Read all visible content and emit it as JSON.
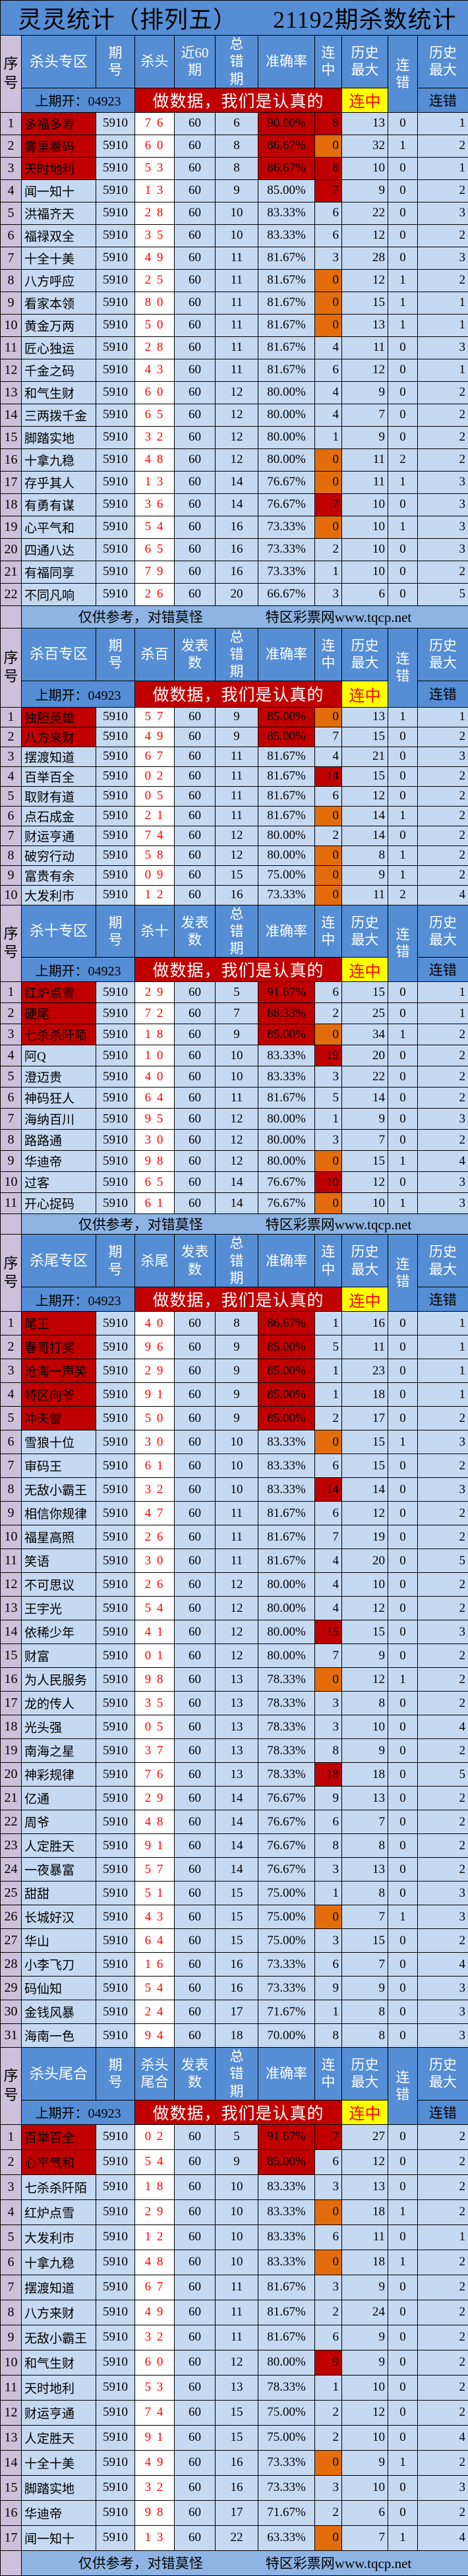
{
  "title": {
    "left": "灵灵统计（排列五）",
    "right": "21192期杀数统计"
  },
  "header_common": {
    "seq": "序号",
    "period": "期号",
    "total_errors": "总错期",
    "accuracy": "准确率",
    "streak_hit": "连中",
    "hist_max": "历史最大",
    "streak_miss": "连错",
    "hist_max2": "历史最大",
    "last_open": "上期开：04923",
    "banner": "做数据，我们是认真的",
    "yellow_label": "连中",
    "max_miss_label": "连错"
  },
  "footer": {
    "left": "仅供参考，对错莫怪",
    "right": "特区彩票网www.tqcp.net"
  },
  "colors": {
    "header": "#558ED5",
    "cell": "#C5D9F1",
    "seq": "#CCC0DA",
    "top_red": "#C00000",
    "hot_red": "#C00000",
    "zero_orange": "#E46C0A",
    "yellow": "#FFFF00",
    "kill_text": "#FF0000",
    "footer": "#8DB4E2"
  },
  "sections": [
    {
      "zone": "杀头专区",
      "kill_label": "杀头",
      "count_label": "近60期",
      "period": "5910",
      "count": "60",
      "rows": [
        [
          "多福多寿",
          "7 6",
          "6",
          "90.00%",
          "8",
          "13",
          "0",
          "1",
          true,
          true
        ],
        [
          "雾里看码",
          "6 0",
          "8",
          "86.67%",
          "0",
          "32",
          "1",
          "2",
          true,
          false
        ],
        [
          "天时地利",
          "5 3",
          "8",
          "86.67%",
          "8",
          "10",
          "0",
          "1",
          true,
          true
        ],
        [
          "闻一知十",
          "1 3",
          "9",
          "85.00%",
          "7",
          "9",
          "0",
          "2",
          false,
          true
        ],
        [
          "洪福齐天",
          "2 8",
          "10",
          "83.33%",
          "6",
          "22",
          "0",
          "3",
          false,
          false
        ],
        [
          "福禄双全",
          "3 5",
          "10",
          "83.33%",
          "6",
          "12",
          "0",
          "2",
          false,
          false
        ],
        [
          "十全十美",
          "4 9",
          "11",
          "81.67%",
          "3",
          "28",
          "0",
          "3",
          false,
          false
        ],
        [
          "八方呼应",
          "2 5",
          "11",
          "81.67%",
          "0",
          "12",
          "1",
          "2",
          false,
          false
        ],
        [
          "看家本领",
          "8 0",
          "11",
          "81.67%",
          "0",
          "15",
          "1",
          "1",
          false,
          false
        ],
        [
          "黄金万两",
          "5 0",
          "11",
          "81.67%",
          "0",
          "13",
          "1",
          "1",
          false,
          false
        ],
        [
          "匠心独运",
          "2 8",
          "11",
          "81.67%",
          "4",
          "11",
          "0",
          "3",
          false,
          false
        ],
        [
          "千金之码",
          "4 3",
          "11",
          "81.67%",
          "6",
          "12",
          "0",
          "1",
          false,
          false
        ],
        [
          "和气生财",
          "6 0",
          "12",
          "80.00%",
          "4",
          "9",
          "0",
          "2",
          false,
          false
        ],
        [
          "三两拨千金",
          "6 5",
          "12",
          "80.00%",
          "4",
          "7",
          "0",
          "2",
          false,
          false
        ],
        [
          "脚踏实地",
          "3 2",
          "12",
          "80.00%",
          "1",
          "9",
          "0",
          "2",
          false,
          false
        ],
        [
          "十拿九稳",
          "4 8",
          "12",
          "80.00%",
          "0",
          "11",
          "2",
          "2",
          false,
          false
        ],
        [
          "存乎其人",
          "1 3",
          "14",
          "76.67%",
          "0",
          "11",
          "1",
          "3",
          false,
          false
        ],
        [
          "有勇有谋",
          "3 6",
          "14",
          "76.67%",
          "7",
          "10",
          "0",
          "3",
          false,
          true
        ],
        [
          "心平气和",
          "5 4",
          "16",
          "73.33%",
          "0",
          "10",
          "1",
          "3",
          false,
          false
        ],
        [
          "四通八达",
          "6 5",
          "16",
          "73.33%",
          "2",
          "10",
          "0",
          "3",
          false,
          false
        ],
        [
          "有福同享",
          "7 9",
          "16",
          "73.33%",
          "1",
          "10",
          "0",
          "2",
          false,
          false
        ],
        [
          "不同凡响",
          "2 6",
          "20",
          "66.67%",
          "3",
          "6",
          "0",
          "5",
          false,
          false
        ]
      ],
      "footer": true
    },
    {
      "zone": "杀百专区",
      "kill_label": "杀百",
      "count_label": "发表数",
      "period": "5910",
      "count": "60",
      "rows": [
        [
          "独胆英雄",
          "5 7",
          "9",
          "85.00%",
          "0",
          "13",
          "1",
          "1",
          true,
          false
        ],
        [
          "八方来财",
          "4 9",
          "9",
          "85.00%",
          "7",
          "15",
          "0",
          "2",
          true,
          false
        ],
        [
          "摆渡知道",
          "6 7",
          "11",
          "81.67%",
          "4",
          "21",
          "0",
          "3",
          false,
          false
        ],
        [
          "百举百全",
          "0 2",
          "11",
          "81.67%",
          "14",
          "15",
          "0",
          "2",
          false,
          true
        ],
        [
          "取财有道",
          "0 5",
          "11",
          "81.67%",
          "6",
          "12",
          "0",
          "2",
          false,
          false
        ],
        [
          "点石成金",
          "2 1",
          "11",
          "81.67%",
          "0",
          "14",
          "1",
          "2",
          false,
          false
        ],
        [
          "财运亨通",
          "7 4",
          "12",
          "80.00%",
          "2",
          "14",
          "0",
          "2",
          false,
          false
        ],
        [
          "破穷行动",
          "5 8",
          "12",
          "80.00%",
          "0",
          "8",
          "1",
          "2",
          false,
          false
        ],
        [
          "富贵有余",
          "0 9",
          "15",
          "75.00%",
          "0",
          "9",
          "1",
          "2",
          false,
          false
        ],
        [
          "大发利市",
          "1 2",
          "16",
          "73.33%",
          "0",
          "11",
          "2",
          "4",
          false,
          false
        ]
      ],
      "footer": false
    },
    {
      "zone": "杀十专区",
      "kill_label": "杀十",
      "count_label": "发表数",
      "period": "5910",
      "count": "60",
      "rows": [
        [
          "红炉点雪",
          "2 9",
          "5",
          "91.67%",
          "6",
          "15",
          "0",
          "1",
          true,
          false
        ],
        [
          "硬尾",
          "7 2",
          "7",
          "88.33%",
          "2",
          "25",
          "0",
          "1",
          true,
          false
        ],
        [
          "七杀杀阡陌",
          "1 8",
          "9",
          "85.00%",
          "0",
          "34",
          "1",
          "2",
          true,
          false
        ],
        [
          "阿Q",
          "1 0",
          "10",
          "83.33%",
          "19",
          "20",
          "0",
          "2",
          false,
          true
        ],
        [
          "澄迈贵",
          "4 0",
          "10",
          "83.33%",
          "3",
          "22",
          "0",
          "2",
          false,
          false
        ],
        [
          "神码狂人",
          "6 4",
          "11",
          "81.67%",
          "5",
          "14",
          "0",
          "2",
          false,
          false
        ],
        [
          "海纳百川",
          "9 5",
          "12",
          "80.00%",
          "1",
          "9",
          "0",
          "3",
          false,
          false
        ],
        [
          "路路通",
          "3 0",
          "12",
          "80.00%",
          "3",
          "7",
          "0",
          "2",
          false,
          false
        ],
        [
          "华迪帝",
          "9 8",
          "12",
          "80.00%",
          "0",
          "15",
          "1",
          "4",
          false,
          false
        ],
        [
          "过客",
          "6 5",
          "14",
          "76.67%",
          "10",
          "12",
          "0",
          "3",
          false,
          true
        ],
        [
          "开心捉码",
          "6 1",
          "14",
          "76.67%",
          "0",
          "10",
          "1",
          "3",
          false,
          false
        ]
      ],
      "footer": true
    },
    {
      "zone": "杀尾专区",
      "kill_label": "杀尾",
      "count_label": "发表数",
      "period": "5910",
      "count": "60",
      "rows": [
        [
          "尾王",
          "4 0",
          "8",
          "86.67%",
          "1",
          "16",
          "0",
          "1",
          true,
          false
        ],
        [
          "春哥打奖",
          "9 6",
          "9",
          "85.00%",
          "5",
          "11",
          "0",
          "1",
          true,
          false
        ],
        [
          "沧海一声笑",
          "2 9",
          "9",
          "85.00%",
          "1",
          "23",
          "0",
          "1",
          true,
          false
        ],
        [
          "特区向爷",
          "9 1",
          "9",
          "85.00%",
          "1",
          "18",
          "0",
          "1",
          true,
          false
        ],
        [
          "冲天雷",
          "5 0",
          "9",
          "85.00%",
          "2",
          "17",
          "0",
          "2",
          true,
          false
        ],
        [
          "雪狼十位",
          "3 0",
          "10",
          "83.33%",
          "0",
          "15",
          "1",
          "3",
          false,
          false
        ],
        [
          "审码王",
          "6 1",
          "10",
          "83.33%",
          "6",
          "15",
          "0",
          "2",
          false,
          false
        ],
        [
          "无敌小霸王",
          "3 2",
          "10",
          "83.33%",
          "14",
          "14",
          "0",
          "3",
          false,
          true
        ],
        [
          "相信你规律",
          "4 7",
          "11",
          "81.67%",
          "6",
          "12",
          "0",
          "2",
          false,
          false
        ],
        [
          "福星高照",
          "2 6",
          "11",
          "81.67%",
          "7",
          "19",
          "0",
          "2",
          false,
          false
        ],
        [
          "笑语",
          "3 0",
          "11",
          "81.67%",
          "4",
          "20",
          "0",
          "5",
          false,
          false
        ],
        [
          "不可思议",
          "2 6",
          "12",
          "80.00%",
          "4",
          "10",
          "0",
          "2",
          false,
          false
        ],
        [
          "王宇光",
          "5 4",
          "12",
          "80.00%",
          "4",
          "12",
          "0",
          "2",
          false,
          false
        ],
        [
          "依稀少年",
          "4 1",
          "12",
          "80.00%",
          "15",
          "15",
          "0",
          "3",
          false,
          true
        ],
        [
          "财富",
          "0 1",
          "12",
          "80.00%",
          "7",
          "9",
          "0",
          "2",
          false,
          false
        ],
        [
          "为人民服务",
          "9 8",
          "13",
          "78.33%",
          "0",
          "12",
          "1",
          "2",
          false,
          false
        ],
        [
          "龙的传人",
          "3 5",
          "13",
          "78.33%",
          "3",
          "8",
          "0",
          "2",
          false,
          false
        ],
        [
          "光头强",
          "0 5",
          "13",
          "78.33%",
          "3",
          "10",
          "0",
          "4",
          false,
          false
        ],
        [
          "南海之星",
          "3 7",
          "13",
          "78.33%",
          "8",
          "9",
          "0",
          "2",
          false,
          false
        ],
        [
          "神彩规律",
          "7 6",
          "13",
          "78.33%",
          "18",
          "18",
          "0",
          "5",
          false,
          true
        ],
        [
          "亿通",
          "2 9",
          "14",
          "76.67%",
          "9",
          "13",
          "0",
          "2",
          false,
          false
        ],
        [
          "周爷",
          "4 8",
          "14",
          "76.67%",
          "6",
          "7",
          "0",
          "2",
          false,
          false
        ],
        [
          "人定胜天",
          "9 1",
          "14",
          "76.67%",
          "8",
          "8",
          "0",
          "2",
          false,
          false
        ],
        [
          "一夜暴富",
          "5 7",
          "14",
          "76.67%",
          "3",
          "13",
          "0",
          "2",
          false,
          false
        ],
        [
          "甜甜",
          "5 1",
          "15",
          "75.00%",
          "1",
          "8",
          "0",
          "3",
          false,
          false
        ],
        [
          "长城好汉",
          "4 3",
          "15",
          "75.00%",
          "0",
          "7",
          "1",
          "3",
          false,
          false
        ],
        [
          "华山",
          "6 4",
          "15",
          "75.00%",
          "3",
          "15",
          "0",
          "2",
          false,
          false
        ],
        [
          "小李飞刀",
          "1 6",
          "16",
          "73.33%",
          "6",
          "7",
          "0",
          "4",
          false,
          false
        ],
        [
          "码仙知",
          "5 4",
          "16",
          "73.33%",
          "9",
          "9",
          "0",
          "3",
          false,
          false
        ],
        [
          "金钱风暴",
          "2 4",
          "17",
          "71.67%",
          "1",
          "8",
          "0",
          "3",
          false,
          false
        ],
        [
          "海南一色",
          "9 4",
          "18",
          "70.00%",
          "8",
          "8",
          "0",
          "3",
          false,
          false
        ]
      ],
      "footer": false
    },
    {
      "zone": "杀头尾合",
      "kill_label": "杀头尾合",
      "count_label": "发表数",
      "period": "5910",
      "count": "60",
      "rows": [
        [
          "百举百全",
          "0 2",
          "5",
          "91.67%",
          "7",
          "27",
          "0",
          "2",
          true,
          true
        ],
        [
          "心平气和",
          "5 4",
          "9",
          "85.00%",
          "6",
          "12",
          "0",
          "2",
          true,
          false
        ],
        [
          "七杀杀阡陌",
          "1 8",
          "10",
          "83.33%",
          "3",
          "13",
          "0",
          "2",
          false,
          false
        ],
        [
          "红炉点雪",
          "2 9",
          "10",
          "83.33%",
          "0",
          "18",
          "1",
          "2",
          false,
          false
        ],
        [
          "大发利市",
          "1 2",
          "10",
          "83.33%",
          "6",
          "11",
          "0",
          "1",
          false,
          false
        ],
        [
          "十拿九稳",
          "4 8",
          "10",
          "83.33%",
          "0",
          "18",
          "1",
          "2",
          false,
          false
        ],
        [
          "摆渡知道",
          "6 7",
          "11",
          "81.67%",
          "3",
          "9",
          "0",
          "2",
          false,
          false
        ],
        [
          "八方来财",
          "4 9",
          "11",
          "81.67%",
          "2",
          "24",
          "0",
          "2",
          false,
          false
        ],
        [
          "无敌小霸王",
          "3 2",
          "11",
          "81.67%",
          "6",
          "9",
          "0",
          "2",
          false,
          false
        ],
        [
          "和气生财",
          "6 0",
          "12",
          "80.00%",
          "9",
          "9",
          "0",
          "2",
          false,
          true
        ],
        [
          "天时地利",
          "5 3",
          "13",
          "78.33%",
          "1",
          "10",
          "0",
          "2",
          false,
          false
        ],
        [
          "财运亨通",
          "7 4",
          "15",
          "75.00%",
          "2",
          "12",
          "0",
          "2",
          false,
          false
        ],
        [
          "人定胜天",
          "9 1",
          "15",
          "75.00%",
          "2",
          "10",
          "0",
          "4",
          false,
          false
        ],
        [
          "十全十美",
          "4 9",
          "16",
          "73.33%",
          "0",
          "9",
          "1",
          "2",
          false,
          false
        ],
        [
          "脚踏实地",
          "3 2",
          "16",
          "73.33%",
          "3",
          "10",
          "0",
          "3",
          false,
          false
        ],
        [
          "华迪帝",
          "9 8",
          "17",
          "71.67%",
          "2",
          "6",
          "0",
          "2",
          false,
          false
        ],
        [
          "闻一知十",
          "1 3",
          "22",
          "63.33%",
          "0",
          "7",
          "1",
          "4",
          false,
          false
        ]
      ],
      "footer": true
    }
  ]
}
